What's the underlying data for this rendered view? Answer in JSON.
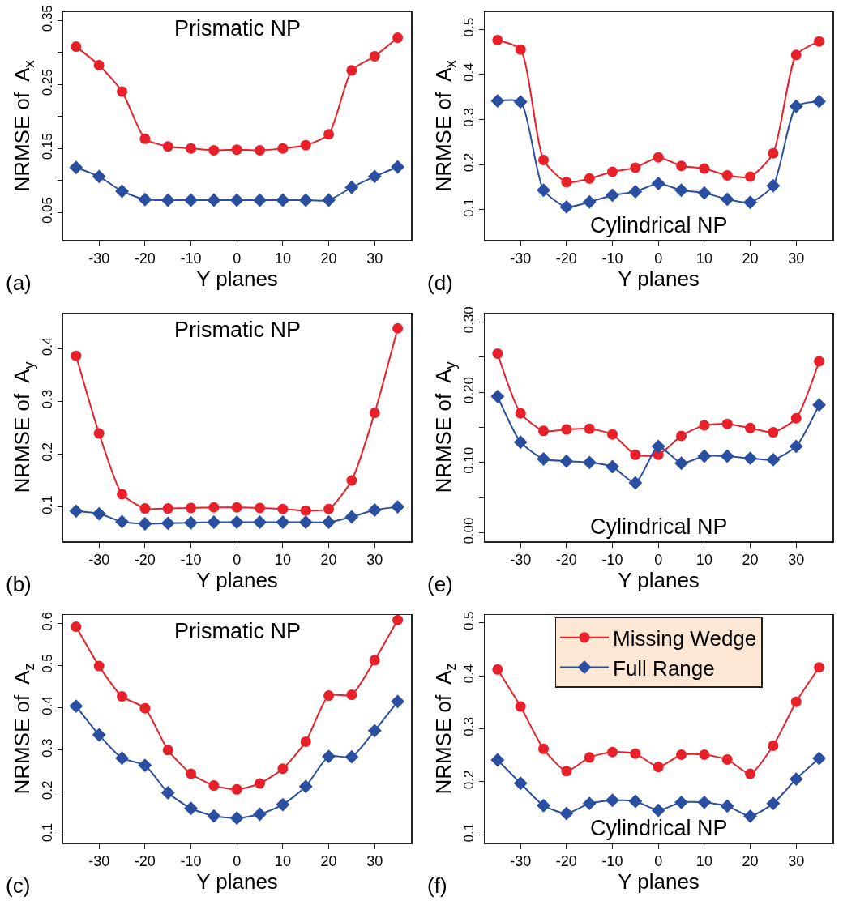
{
  "chart_data": [
    {
      "type": "line",
      "title": "Prismatic NP",
      "xlabel": "Y planes",
      "ylabel": "NRMSE of  A$_{x}$",
      "annotations": [
        "(a)"
      ],
      "x": [
        -35,
        -30,
        -25,
        -20,
        -15,
        -10,
        -5,
        0,
        5,
        10,
        15,
        20,
        25,
        30,
        35
      ],
      "xlim": [
        -37.8,
        37.9
      ],
      "xticks": [
        -30,
        -20,
        -10,
        0,
        10,
        20,
        30
      ],
      "ylim": [
        0.007,
        0.363
      ],
      "yticks": [
        0.05,
        {
          "value": 0.1,
          "label": null
        },
        0.15,
        {
          "value": 0.2,
          "label": null
        },
        0.25,
        {
          "value": 0.3,
          "label": null
        },
        0.35
      ],
      "legend": false,
      "series": [
        {
          "color": "#e8202a",
          "marker": "circle",
          "values": [
            0.309,
            0.28,
            0.239,
            0.165,
            0.153,
            0.15,
            0.147,
            0.148,
            0.147,
            0.15,
            0.155,
            0.172,
            0.272,
            0.294,
            0.323
          ]
        },
        {
          "color": "#2a4fa0",
          "marker": "diamond",
          "values": [
            0.12,
            0.106,
            0.083,
            0.07,
            0.069,
            0.069,
            0.069,
            0.069,
            0.069,
            0.069,
            0.069,
            0.069,
            0.089,
            0.106,
            0.121
          ]
        }
      ]
    },
    {
      "type": "line",
      "title": "Cylindrical NP",
      "xlabel": "Y planes",
      "ylabel": "NRMSE of  A$_{x}$",
      "annotations": [
        "(d)"
      ],
      "x": [
        -35,
        -30,
        -25,
        -20,
        -15,
        -10,
        -5,
        0,
        5,
        10,
        15,
        20,
        25,
        30,
        35
      ],
      "xlim": [
        -37.8,
        37.9
      ],
      "xticks": [
        -30,
        -20,
        -10,
        0,
        10,
        20,
        30
      ],
      "ylim": [
        0.033,
        0.538
      ],
      "yticks": [
        0.1,
        0.2,
        0.3,
        0.4,
        0.5
      ],
      "legend": false,
      "series": [
        {
          "color": "#e8202a",
          "marker": "circle",
          "values": [
            0.476,
            0.455,
            0.21,
            0.161,
            0.169,
            0.184,
            0.193,
            0.216,
            0.197,
            0.191,
            0.176,
            0.173,
            0.225,
            0.443,
            0.473
          ]
        },
        {
          "color": "#2a4fa0",
          "marker": "diamond",
          "values": [
            0.341,
            0.339,
            0.143,
            0.106,
            0.117,
            0.132,
            0.14,
            0.158,
            0.143,
            0.137,
            0.123,
            0.116,
            0.153,
            0.329,
            0.34
          ]
        }
      ]
    },
    {
      "type": "line",
      "title": "Prismatic NP",
      "xlabel": "Y planes",
      "ylabel": "NRMSE of  A$_{y}$",
      "annotations": [
        "(b)"
      ],
      "x": [
        -35,
        -30,
        -25,
        -20,
        -15,
        -10,
        -5,
        0,
        5,
        10,
        15,
        20,
        25,
        30,
        35
      ],
      "xlim": [
        -37.8,
        37.9
      ],
      "xticks": [
        -30,
        -20,
        -10,
        0,
        10,
        20,
        30
      ],
      "ylim": [
        0.035,
        0.466
      ],
      "yticks": [
        0.1,
        0.2,
        0.3,
        0.4
      ],
      "legend": false,
      "series": [
        {
          "color": "#e8202a",
          "marker": "circle",
          "values": [
            0.386,
            0.239,
            0.124,
            0.097,
            0.097,
            0.098,
            0.099,
            0.099,
            0.098,
            0.096,
            0.093,
            0.096,
            0.15,
            0.278,
            0.438
          ]
        },
        {
          "color": "#2a4fa0",
          "marker": "diamond",
          "values": [
            0.092,
            0.087,
            0.072,
            0.068,
            0.069,
            0.07,
            0.071,
            0.071,
            0.071,
            0.071,
            0.071,
            0.071,
            0.081,
            0.094,
            0.1
          ]
        }
      ]
    },
    {
      "type": "line",
      "title": "Cylindrical NP",
      "xlabel": "Y planes",
      "ylabel": "NRMSE of  A$_{y}$",
      "annotations": [
        "(e)"
      ],
      "x": [
        -35,
        -30,
        -25,
        -20,
        -15,
        -10,
        -5,
        0,
        5,
        10,
        15,
        20,
        25,
        30,
        35
      ],
      "xlim": [
        -37.8,
        37.9
      ],
      "xticks": [
        -30,
        -20,
        -10,
        0,
        10,
        20,
        30
      ],
      "ylim": [
        -0.012,
        0.312
      ],
      "yticks": [
        "0.00",
        {
          "value": 0.05,
          "label": null
        },
        {
          "value": 0.1,
          "label": "0.10"
        },
        {
          "value": 0.15,
          "label": null
        },
        {
          "value": 0.2,
          "label": "0.20"
        },
        {
          "value": 0.25,
          "label": null
        },
        {
          "value": 0.3,
          "label": "0.30"
        }
      ],
      "legend": false,
      "series": [
        {
          "color": "#e8202a",
          "marker": "circle",
          "values": [
            0.255,
            0.17,
            0.145,
            0.147,
            0.148,
            0.14,
            0.111,
            0.111,
            0.138,
            0.153,
            0.155,
            0.149,
            0.143,
            0.163,
            0.244
          ]
        },
        {
          "color": "#2a4fa0",
          "marker": "diamond",
          "values": [
            0.194,
            0.129,
            0.105,
            0.102,
            0.1,
            0.094,
            0.071,
            0.123,
            0.099,
            0.109,
            0.109,
            0.106,
            0.104,
            0.123,
            0.182
          ]
        }
      ]
    },
    {
      "type": "line",
      "title": "Prismatic NP",
      "xlabel": "Y planes",
      "ylabel": "NRMSE of  A$_{z}$",
      "annotations": [
        "(c)"
      ],
      "x": [
        -35,
        -30,
        -25,
        -20,
        -15,
        -10,
        -5,
        0,
        5,
        10,
        15,
        20,
        25,
        30,
        35
      ],
      "xlim": [
        -37.8,
        37.9
      ],
      "xticks": [
        -30,
        -20,
        -10,
        0,
        10,
        20,
        30
      ],
      "ylim": [
        0.081,
        0.62
      ],
      "yticks": [
        0.1,
        0.2,
        0.3,
        0.4,
        0.5,
        0.6
      ],
      "legend": false,
      "series": [
        {
          "color": "#e8202a",
          "marker": "circle",
          "values": [
            0.592,
            0.499,
            0.427,
            0.399,
            0.3,
            0.244,
            0.216,
            0.207,
            0.221,
            0.256,
            0.32,
            0.429,
            0.431,
            0.513,
            0.608
          ]
        },
        {
          "color": "#2a4fa0",
          "marker": "diamond",
          "values": [
            0.404,
            0.336,
            0.281,
            0.264,
            0.199,
            0.162,
            0.144,
            0.139,
            0.148,
            0.171,
            0.214,
            0.285,
            0.284,
            0.346,
            0.415
          ]
        }
      ]
    },
    {
      "type": "line",
      "title": "Cylindrical NP",
      "xlabel": "Y planes",
      "ylabel": "NRMSE of  A$_{z}$",
      "annotations": [
        "(f)"
      ],
      "x": [
        -35,
        -30,
        -25,
        -20,
        -15,
        -10,
        -5,
        0,
        5,
        10,
        15,
        20,
        25,
        30,
        35
      ],
      "xlim": [
        -37.8,
        37.9
      ],
      "xticks": [
        -30,
        -20,
        -10,
        0,
        10,
        20,
        30
      ],
      "ylim": [
        0.085,
        0.515
      ],
      "yticks": [
        0.1,
        0.2,
        0.3,
        0.4,
        0.5
      ],
      "legend": "top",
      "series": [
        {
          "name": "Missing Wedge",
          "color": "#e8202a",
          "marker": "circle",
          "values": [
            0.412,
            0.342,
            0.262,
            0.22,
            0.246,
            0.256,
            0.253,
            0.228,
            0.251,
            0.251,
            0.242,
            0.215,
            0.268,
            0.351,
            0.416
          ]
        },
        {
          "name": "Full Range",
          "color": "#2a4fa0",
          "marker": "diamond",
          "values": [
            0.241,
            0.197,
            0.155,
            0.14,
            0.159,
            0.165,
            0.163,
            0.146,
            0.161,
            0.161,
            0.154,
            0.135,
            0.159,
            0.205,
            0.244
          ]
        }
      ]
    }
  ]
}
